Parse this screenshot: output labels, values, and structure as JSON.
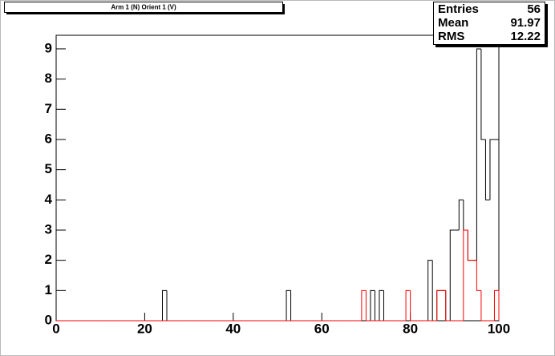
{
  "chart_data": {
    "type": "histogram",
    "title": "Arm 1 (N) Orient 1 (V)",
    "bins": [
      0,
      1,
      2,
      3,
      4,
      5,
      6,
      7,
      8,
      9,
      10,
      11,
      12,
      13,
      14,
      15,
      16,
      17,
      18,
      19,
      20,
      21,
      22,
      23,
      24,
      25,
      26,
      27,
      28,
      29,
      30,
      31,
      32,
      33,
      34,
      35,
      36,
      37,
      38,
      39,
      40,
      41,
      42,
      43,
      44,
      45,
      46,
      47,
      48,
      49,
      50,
      51,
      52,
      53,
      54,
      55,
      56,
      57,
      58,
      59,
      60,
      61,
      62,
      63,
      64,
      65,
      66,
      67,
      68,
      69,
      70,
      71,
      72,
      73,
      74,
      75,
      76,
      77,
      78,
      79,
      80,
      81,
      82,
      83,
      84,
      85,
      86,
      87,
      88,
      89,
      90,
      91,
      92,
      93,
      94,
      95,
      96,
      97,
      98,
      99,
      100
    ],
    "series": [
      {
        "color": "#000000",
        "values": [
          0,
          0,
          0,
          0,
          0,
          0,
          0,
          0,
          0,
          0,
          0,
          0,
          0,
          0,
          0,
          0,
          0,
          0,
          0,
          0,
          0,
          0,
          0,
          0,
          1,
          0,
          0,
          0,
          0,
          0,
          0,
          0,
          0,
          0,
          0,
          0,
          0,
          0,
          0,
          0,
          0,
          0,
          0,
          0,
          0,
          0,
          0,
          0,
          0,
          0,
          0,
          0,
          1,
          0,
          0,
          0,
          0,
          0,
          0,
          0,
          0,
          0,
          0,
          0,
          0,
          0,
          0,
          0,
          0,
          0,
          0,
          1,
          0,
          1,
          0,
          0,
          0,
          0,
          0,
          0,
          0,
          0,
          0,
          0,
          2,
          0,
          1,
          1,
          0,
          3,
          3,
          4,
          3,
          2,
          2,
          9,
          6,
          4,
          6,
          6
        ]
      },
      {
        "color": "#ff0000",
        "values": [
          0,
          0,
          0,
          0,
          0,
          0,
          0,
          0,
          0,
          0,
          0,
          0,
          0,
          0,
          0,
          0,
          0,
          0,
          0,
          0,
          0,
          0,
          0,
          0,
          0,
          0,
          0,
          0,
          0,
          0,
          0,
          0,
          0,
          0,
          0,
          0,
          0,
          0,
          0,
          0,
          0,
          0,
          0,
          0,
          0,
          0,
          0,
          0,
          0,
          0,
          0,
          0,
          0,
          0,
          0,
          0,
          0,
          0,
          0,
          0,
          0,
          0,
          0,
          0,
          0,
          0,
          0,
          0,
          0,
          1,
          0,
          0,
          0,
          0,
          0,
          0,
          0,
          0,
          0,
          1,
          0,
          0,
          0,
          0,
          0,
          0,
          1,
          1,
          0,
          0,
          0,
          0,
          3,
          2,
          2,
          1,
          0,
          0,
          0,
          1
        ]
      }
    ],
    "xlim": [
      0,
      100
    ],
    "xticks": [
      0,
      20,
      40,
      60,
      80,
      100
    ],
    "ylim": [
      0,
      9.45
    ],
    "yticks": [
      0,
      1,
      2,
      3,
      4,
      5,
      6,
      7,
      8,
      9
    ],
    "stats": {
      "labels": [
        "Entries",
        "Mean",
        "RMS"
      ],
      "values": [
        56,
        91.97,
        12.22
      ]
    }
  }
}
